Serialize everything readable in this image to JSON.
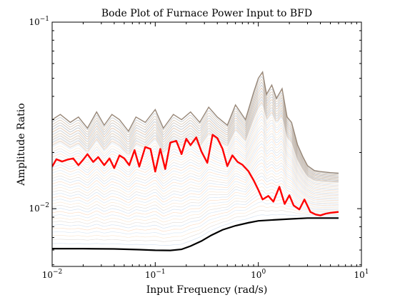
{
  "chart_data": {
    "type": "line",
    "title": "Bode Plot of Furnace Power Input to BFD",
    "xlabel": "Input Frequency (rad/s)",
    "ylabel": "Amplitude Ratio",
    "xscale": "log",
    "yscale": "log",
    "xlim": [
      0.01,
      10
    ],
    "ylim": [
      0.0049,
      0.1
    ],
    "grid": false,
    "legend": "none",
    "x_ticks": [
      {
        "base": "10",
        "exp": "−2",
        "value": 0.01
      },
      {
        "base": "10",
        "exp": "−1",
        "value": 0.1
      },
      {
        "base": "10",
        "exp": "0",
        "value": 1
      },
      {
        "base": "10",
        "exp": "1",
        "value": 10
      }
    ],
    "y_ticks": [
      {
        "base": "10",
        "exp": "−2",
        "value": 0.01
      },
      {
        "base": "10",
        "exp": "−1",
        "value": 0.1
      }
    ],
    "colors": {
      "highlight": "#ff0000",
      "baseline": "#000000",
      "upper_envelope": "#8c7b6b",
      "ensemble_palette": [
        "#f5b98a",
        "#a9c4e4",
        "#c8c0b8",
        "#f2d0a8",
        "#b8cfe8"
      ]
    },
    "series": [
      {
        "role": "highlight",
        "x": [
          0.01,
          0.011,
          0.0125,
          0.014,
          0.016,
          0.018,
          0.02,
          0.022,
          0.025,
          0.028,
          0.032,
          0.036,
          0.04,
          0.045,
          0.05,
          0.056,
          0.063,
          0.07,
          0.08,
          0.09,
          0.1,
          0.112,
          0.125,
          0.14,
          0.16,
          0.18,
          0.2,
          0.22,
          0.25,
          0.28,
          0.32,
          0.36,
          0.4,
          0.45,
          0.5,
          0.56,
          0.63,
          0.7,
          0.8,
          0.9,
          1.0,
          1.1,
          1.25,
          1.4,
          1.6,
          1.8,
          2.0,
          2.2,
          2.5,
          2.8,
          3.2,
          3.6,
          4.0,
          4.5,
          5.0,
          6.0
        ],
        "y": [
          0.0168,
          0.0184,
          0.0179,
          0.0183,
          0.0186,
          0.0171,
          0.0183,
          0.0196,
          0.0178,
          0.0189,
          0.0171,
          0.0186,
          0.0165,
          0.0193,
          0.0186,
          0.0171,
          0.0206,
          0.0168,
          0.0214,
          0.0209,
          0.0158,
          0.0209,
          0.0163,
          0.0226,
          0.0231,
          0.0196,
          0.0237,
          0.0219,
          0.0241,
          0.0203,
          0.0176,
          0.0249,
          0.0239,
          0.0209,
          0.0169,
          0.0193,
          0.0178,
          0.0172,
          0.0159,
          0.0142,
          0.0126,
          0.0112,
          0.0117,
          0.0109,
          0.0131,
          0.0106,
          0.0118,
          0.0104,
          0.0099,
          0.0112,
          0.0096,
          0.0093,
          0.0092,
          0.0094,
          0.0095,
          0.0096
        ]
      },
      {
        "role": "baseline",
        "x": [
          0.01,
          0.02,
          0.04,
          0.07,
          0.1,
          0.14,
          0.18,
          0.22,
          0.28,
          0.35,
          0.45,
          0.6,
          0.8,
          1.0,
          1.4,
          2.0,
          3.0,
          4.0,
          6.0
        ],
        "y": [
          0.0061,
          0.0061,
          0.00608,
          0.00603,
          0.00598,
          0.00597,
          0.00605,
          0.0063,
          0.0067,
          0.0072,
          0.0077,
          0.0081,
          0.0084,
          0.0086,
          0.0087,
          0.0088,
          0.0089,
          0.0089,
          0.0089
        ]
      },
      {
        "role": "upper_envelope",
        "x": [
          0.01,
          0.012,
          0.015,
          0.018,
          0.022,
          0.027,
          0.032,
          0.038,
          0.045,
          0.055,
          0.065,
          0.08,
          0.1,
          0.12,
          0.15,
          0.18,
          0.22,
          0.27,
          0.33,
          0.4,
          0.5,
          0.6,
          0.75,
          0.9,
          1.0,
          1.1,
          1.2,
          1.35,
          1.5,
          1.7,
          1.9,
          2.1,
          2.4,
          2.7,
          3.0,
          3.5,
          4.0,
          5.0,
          6.0
        ],
        "y": [
          0.03,
          0.032,
          0.029,
          0.031,
          0.027,
          0.033,
          0.028,
          0.032,
          0.03,
          0.026,
          0.031,
          0.029,
          0.034,
          0.027,
          0.032,
          0.03,
          0.033,
          0.029,
          0.035,
          0.031,
          0.028,
          0.036,
          0.03,
          0.042,
          0.05,
          0.054,
          0.041,
          0.046,
          0.039,
          0.044,
          0.031,
          0.029,
          0.022,
          0.019,
          0.017,
          0.016,
          0.0158,
          0.0156,
          0.0155
        ]
      }
    ]
  }
}
